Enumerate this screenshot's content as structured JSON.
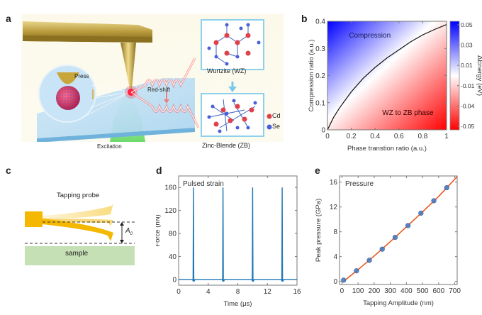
{
  "panels": {
    "a": {
      "label": "a",
      "press": "Press",
      "red_shift": "Red-shift",
      "excitation": "Excitation",
      "wurtzite": "Wurtzite (WZ)",
      "zinc_blende": "Zinc-Blende (ZB)",
      "legend": [
        {
          "label": "Cd",
          "color": "#e0404a"
        },
        {
          "label": "Se",
          "color": "#4a5fd8"
        }
      ]
    },
    "b": {
      "label": "b"
    },
    "c": {
      "label": "c",
      "probe_title": "Tapping probe",
      "amplitude_symbol": "A",
      "amplitude_subscript": "0",
      "sample": "sample",
      "probe_color": "#f5b800",
      "sample_color": "#c5e0b4"
    },
    "d": {
      "label": "d"
    },
    "e": {
      "label": "e"
    }
  },
  "chart_data": [
    {
      "id": "b",
      "type": "heatmap",
      "title": "",
      "xlabel": "Phase transtion ratio (a.u.)",
      "ylabel": "Compression ratio (a.u.)",
      "xlim": [
        0,
        1
      ],
      "ylim": [
        0,
        0.4
      ],
      "xticks": [
        "0",
        "0.2",
        "0.4",
        "0.6",
        "0.8",
        "1"
      ],
      "xtick_values": [
        0,
        0.2,
        0.4,
        0.6,
        0.8,
        1
      ],
      "yticks": [
        "0",
        "0.1",
        "0.2",
        "0.3",
        "0.4"
      ],
      "ytick_values": [
        0,
        0.1,
        0.2,
        0.3,
        0.4
      ],
      "boundary_curve": {
        "x": [
          0,
          0.05,
          0.1,
          0.2,
          0.3,
          0.4,
          0.5,
          0.6,
          0.7,
          0.8,
          0.9,
          1.0
        ],
        "y": [
          0,
          0.045,
          0.08,
          0.14,
          0.19,
          0.23,
          0.265,
          0.295,
          0.325,
          0.35,
          0.37,
          0.388
        ]
      },
      "annotations": [
        "Compression",
        "WZ to ZB phase"
      ],
      "colorbar": {
        "label": "ΔEnergy (eV)",
        "ticks": [
          "0.05",
          "0.03",
          "0.01",
          "-0.01",
          "-0.04",
          "-0.05"
        ],
        "range": [
          -0.05,
          0.05
        ],
        "colors": {
          "max": "#0000ff",
          "mid": "#ffffff",
          "min": "#ff0000"
        }
      }
    },
    {
      "id": "d",
      "type": "line",
      "title": "",
      "annotation": "Pulsed strain",
      "xlabel": "Time (μs)",
      "ylabel": "Force (nN)",
      "xlim": [
        0,
        16
      ],
      "ylim": [
        -10,
        180
      ],
      "xticks": [
        "0",
        "4",
        "8",
        "12",
        "16"
      ],
      "xtick_values": [
        0,
        4,
        8,
        12,
        16
      ],
      "yticks": [
        "0",
        "40",
        "80",
        "120",
        "160"
      ],
      "ytick_values": [
        0,
        40,
        80,
        120,
        160
      ],
      "series": [
        {
          "name": "Force",
          "color": "#1f77b4",
          "x": [
            0,
            1.9,
            1.95,
            2.0,
            2.05,
            2.1,
            2.2,
            5.9,
            5.95,
            6.0,
            6.05,
            6.1,
            6.2,
            9.9,
            9.95,
            10.0,
            10.05,
            10.1,
            10.2,
            13.9,
            13.95,
            14.0,
            14.05,
            14.1,
            14.2,
            16
          ],
          "y": [
            0,
            0,
            -3,
            160,
            -3,
            -3,
            0,
            0,
            -3,
            160,
            -3,
            -3,
            0,
            0,
            -3,
            160,
            -3,
            -3,
            0,
            0,
            -3,
            160,
            -3,
            -3,
            0,
            0
          ]
        }
      ]
    },
    {
      "id": "e",
      "type": "scatter",
      "title": "",
      "annotation": "Pressure",
      "xlabel": "Tapping Amplitude (nm)",
      "ylabel": "Peak pressure (GPa)",
      "xlim": [
        -15,
        715
      ],
      "ylim": [
        -0.5,
        17
      ],
      "xticks": [
        "0",
        "100",
        "200",
        "300",
        "400",
        "500",
        "600",
        "700"
      ],
      "xtick_values": [
        0,
        100,
        200,
        300,
        400,
        500,
        600,
        700
      ],
      "yticks": [
        "0",
        "4",
        "8",
        "12",
        "16"
      ],
      "ytick_values": [
        0,
        4,
        8,
        12,
        16
      ],
      "series": [
        {
          "name": "Data",
          "color": "#4a7cc0",
          "x": [
            10,
            90,
            170,
            250,
            330,
            410,
            490,
            570,
            650
          ],
          "y": [
            0.2,
            1.7,
            3.4,
            5.2,
            7.1,
            9.0,
            11.0,
            13.0,
            15.1
          ]
        },
        {
          "name": "Fit",
          "color": "#e8561e",
          "x": [
            10,
            100,
            200,
            300,
            400,
            500,
            600,
            715
          ],
          "y": [
            0.0,
            1.9,
            4.1,
            6.4,
            8.8,
            11.2,
            13.7,
            16.9
          ]
        }
      ]
    }
  ]
}
